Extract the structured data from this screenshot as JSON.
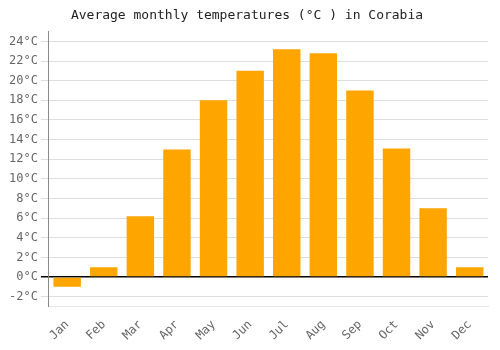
{
  "chart_data": {
    "type": "bar",
    "title": "Average monthly temperatures (°C ) in Corabia",
    "categories": [
      "Jan",
      "Feb",
      "Mar",
      "Apr",
      "May",
      "Jun",
      "Jul",
      "Aug",
      "Sep",
      "Oct",
      "Nov",
      "Dec"
    ],
    "values": [
      -1.0,
      1.0,
      6.2,
      13.0,
      18.0,
      21.0,
      23.2,
      22.8,
      19.0,
      13.1,
      7.0,
      1.0
    ],
    "color": "#FFA500",
    "ylim": [
      -3,
      25
    ],
    "yticks": [
      {
        "value": -2,
        "label": "-2°C"
      },
      {
        "value": 0,
        "label": "0°C"
      },
      {
        "value": 2,
        "label": "2°C"
      },
      {
        "value": 4,
        "label": "4°C"
      },
      {
        "value": 6,
        "label": "6°C"
      },
      {
        "value": 8,
        "label": "8°C"
      },
      {
        "value": 10,
        "label": "10°C"
      },
      {
        "value": 12,
        "label": "12°C"
      },
      {
        "value": 14,
        "label": "14°C"
      },
      {
        "value": 16,
        "label": "16°C"
      },
      {
        "value": 18,
        "label": "18°C"
      },
      {
        "value": 20,
        "label": "20°C"
      },
      {
        "value": 22,
        "label": "22°C"
      },
      {
        "value": 24,
        "label": "24°C"
      }
    ],
    "grid": true
  }
}
